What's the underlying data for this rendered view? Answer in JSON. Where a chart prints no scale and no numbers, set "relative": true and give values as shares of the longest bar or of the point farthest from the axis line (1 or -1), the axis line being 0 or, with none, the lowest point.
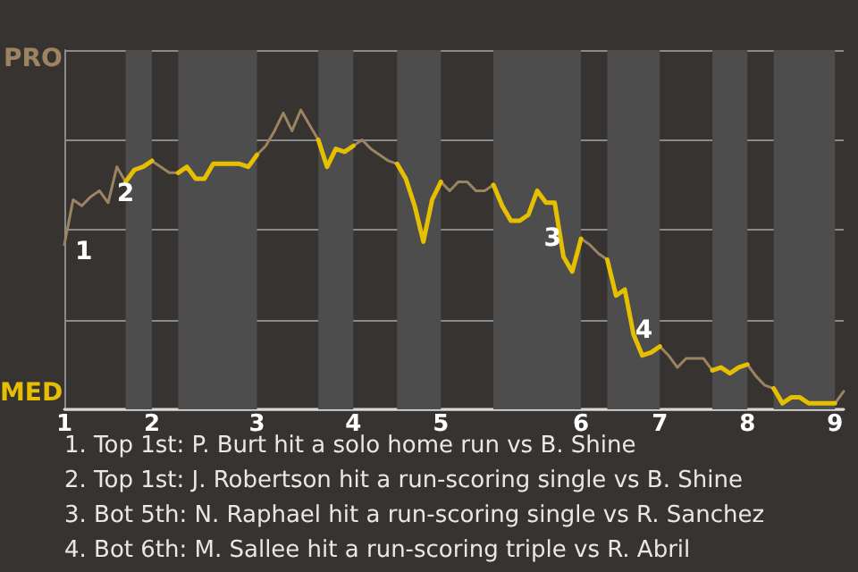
{
  "chart_data": {
    "type": "line",
    "relative": true,
    "categories": [
      "1",
      null,
      null,
      null,
      null,
      null,
      null,
      null,
      null,
      null,
      "2",
      null,
      null,
      null,
      null,
      null,
      null,
      null,
      null,
      null,
      null,
      null,
      "3",
      null,
      null,
      null,
      null,
      null,
      null,
      null,
      null,
      null,
      null,
      "4",
      null,
      null,
      null,
      null,
      null,
      null,
      null,
      null,
      null,
      "5",
      null,
      null,
      null,
      null,
      null,
      null,
      null,
      null,
      null,
      null,
      null,
      null,
      null,
      null,
      null,
      "6",
      null,
      null,
      null,
      null,
      null,
      null,
      null,
      null,
      "7",
      null,
      null,
      null,
      null,
      null,
      null,
      null,
      null,
      null,
      "8",
      null,
      null,
      null,
      null,
      null,
      null,
      null,
      null,
      null,
      "9",
      null
    ],
    "grid": "y",
    "marker": "none",
    "series": [
      {
        "color": "#9c8462",
        "values": [
          0.55,
          0.7,
          0.68,
          0.71,
          0.73,
          0.69,
          0.81,
          0.76,
          null,
          null,
          0.83,
          0.81,
          0.79,
          0.79,
          null,
          null,
          null,
          null,
          null,
          null,
          null,
          null,
          0.85,
          0.88,
          0.93,
          0.99,
          0.93,
          1,
          0.95,
          0.9,
          null,
          null,
          null,
          0.88,
          0.9,
          0.87,
          0.85,
          0.83,
          0.82,
          null,
          null,
          null,
          null,
          0.76,
          0.73,
          0.76,
          0.76,
          0.73,
          0.73,
          0.75,
          null,
          null,
          null,
          null,
          null,
          null,
          null,
          null,
          null,
          0.57,
          0.55,
          0.52,
          0.5,
          null,
          null,
          null,
          null,
          null,
          0.21,
          0.18,
          0.14,
          0.17,
          0.17,
          0.17,
          0.13,
          null,
          null,
          null,
          0.15,
          0.11,
          0.08,
          0.07,
          null,
          null,
          null,
          null,
          null,
          null,
          0.02,
          0.06
        ]
      },
      {
        "color": "#e6bf00",
        "values": [
          null,
          null,
          null,
          null,
          null,
          null,
          null,
          0.76,
          0.8,
          0.81,
          0.83,
          null,
          null,
          0.79,
          0.81,
          0.77,
          0.77,
          0.82,
          0.82,
          0.82,
          0.82,
          0.81,
          0.85,
          null,
          null,
          null,
          null,
          null,
          null,
          0.9,
          0.81,
          0.87,
          0.86,
          0.88,
          null,
          null,
          null,
          null,
          0.82,
          0.77,
          0.68,
          0.56,
          0.7,
          0.76,
          null,
          null,
          null,
          null,
          null,
          0.75,
          0.68,
          0.63,
          0.63,
          0.65,
          0.73,
          0.69,
          0.69,
          0.51,
          0.46,
          0.57,
          null,
          null,
          0.5,
          0.38,
          0.4,
          0.25,
          0.18,
          0.19,
          0.21,
          null,
          null,
          null,
          null,
          null,
          0.13,
          0.14,
          0.12,
          0.14,
          0.15,
          null,
          null,
          0.07,
          0.02,
          0.04,
          0.04,
          0.02,
          0.02,
          0.02,
          0.02,
          null
        ]
      }
    ],
    "annotations": [
      "PRO",
      "MED",
      {
        "text": "1",
        "x": "1",
        "y": 0.55
      },
      {
        "text": "2",
        "y": 0.76
      },
      {
        "text": "3",
        "y": 0.57
      },
      {
        "text": "4",
        "y": 0.25
      },
      "1. Top 1st: P. Burt hit a solo home run vs B. Shine",
      "2. Top 1st: J. Robertson hit a run-scoring single vs B. Shine",
      "3. Bot 5th: N. Raphael hit a run-scoring single vs R. Sanchez",
      "4. Bot 6th: M. Sallee hit a run-scoring triple vs R. Abril"
    ]
  }
}
